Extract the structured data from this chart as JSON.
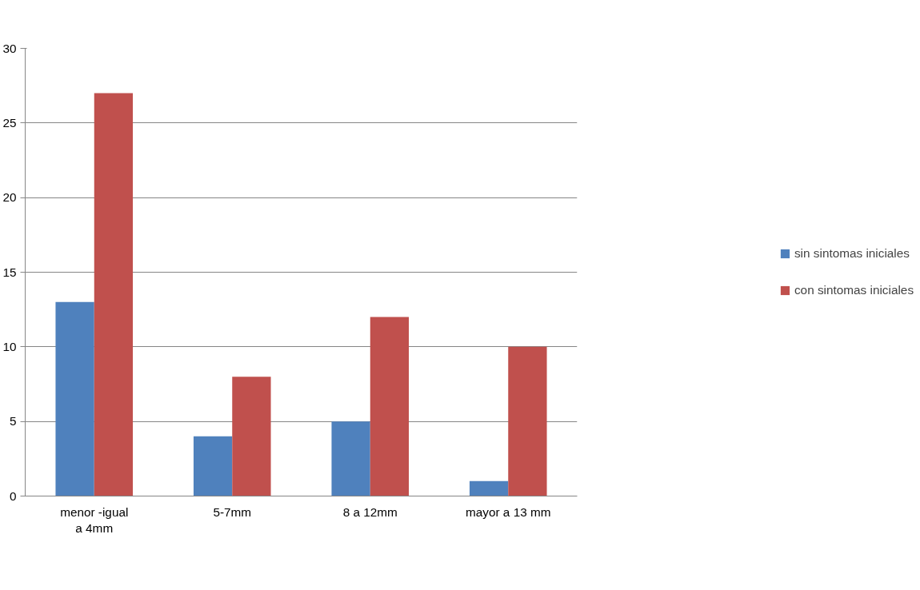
{
  "chart_data": {
    "type": "bar",
    "categories": [
      "menor -igual a 4mm",
      "5-7mm",
      "8 a 12mm",
      "mayor a 13 mm"
    ],
    "series": [
      {
        "name": "sin sintomas iniciales",
        "color": "#4f81bd",
        "values": [
          13,
          4,
          5,
          1
        ]
      },
      {
        "name": "con sintomas iniciales",
        "color": "#c0504d",
        "values": [
          27,
          8,
          12,
          10
        ]
      }
    ],
    "ylim": [
      0,
      30
    ],
    "yticks": [
      0,
      5,
      10,
      15,
      20,
      25,
      30
    ],
    "grid": "y",
    "legend": "right"
  }
}
